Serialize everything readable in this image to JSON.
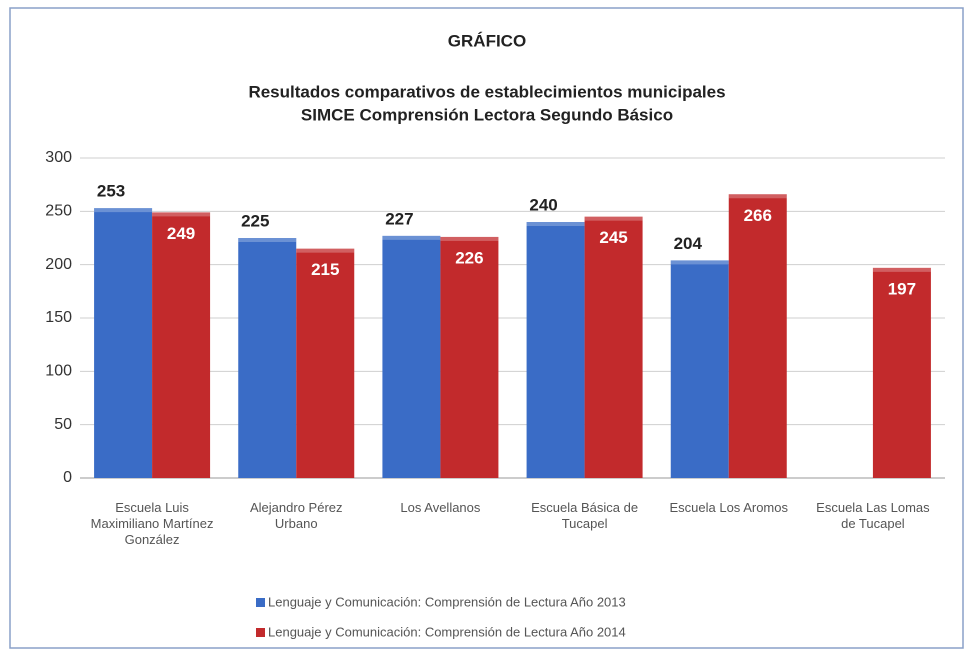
{
  "chart_data": {
    "type": "bar",
    "title": "GRÁFICO",
    "subtitle": [
      "Resultados comparativos de establecimientos municipales",
      "SIMCE Comprensión Lectora  Segundo Básico"
    ],
    "categories": [
      "Escuela Luis Maximiliano Martínez González",
      "Alejandro Pérez Urbano",
      "Los Avellanos",
      "Escuela Básica de Tucapel",
      "Escuela Los Aromos",
      "Escuela Las Lomas de Tucapel"
    ],
    "series": [
      {
        "name": "Lenguaje y Comunicación: Comprensión de Lectura Año 2013",
        "color": "#3a6cc6",
        "values": [
          253,
          225,
          227,
          240,
          204,
          null
        ]
      },
      {
        "name": "Lenguaje y Comunicación: Comprensión de Lectura Año 2014",
        "color": "#c22a2c",
        "values": [
          249,
          215,
          226,
          245,
          266,
          197
        ]
      }
    ],
    "ylim": [
      0,
      300
    ],
    "yticks": [
      0,
      50,
      100,
      150,
      200,
      250,
      300
    ],
    "grid": true,
    "legend": "bottom"
  }
}
